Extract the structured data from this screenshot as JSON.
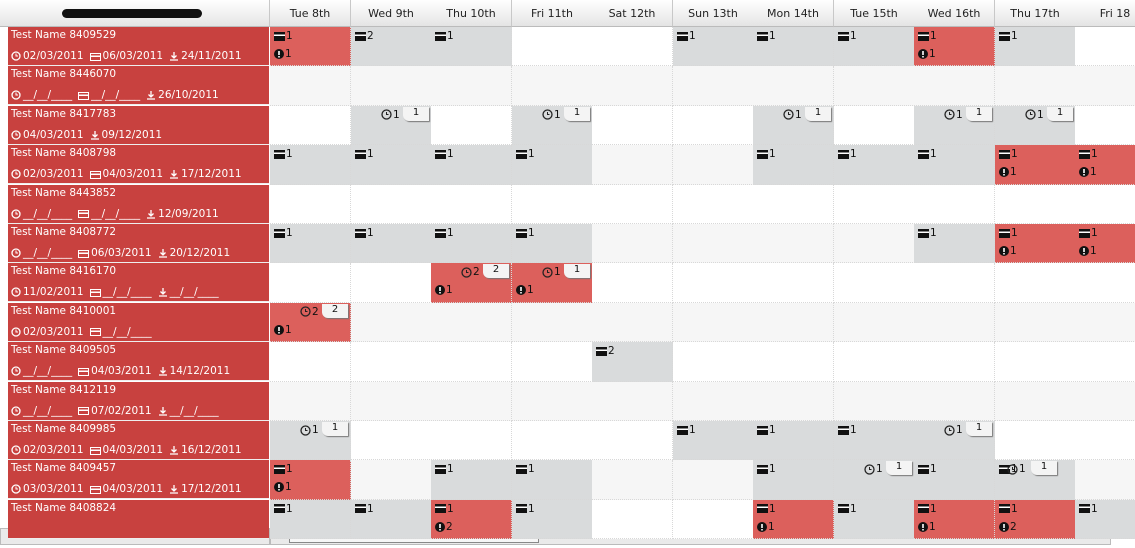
{
  "days": [
    "Tue 8th",
    "Wed 9th",
    "Thu 10th",
    "Fri 11th",
    "Sat 12th",
    "Sun 13th",
    "Mon 14th",
    "Tue 15th",
    "Wed 16th",
    "Thu 17th",
    "Fri 18"
  ],
  "rows": [
    {
      "name": "Test Name 8409529",
      "dates": [
        {
          "kind": "clock",
          "text": "02/03/2011"
        },
        {
          "kind": "card",
          "text": "06/03/2011"
        },
        {
          "kind": "download",
          "text": "24/11/2011"
        }
      ],
      "cells": [
        {
          "bg": "red",
          "card": 1,
          "alert": 1
        },
        {
          "bg": "gray",
          "card": 2
        },
        {
          "bg": "gray",
          "card": 1
        },
        {},
        {},
        {
          "bg": "gray",
          "card": 1
        },
        {
          "bg": "gray",
          "card": 1
        },
        {
          "bg": "gray",
          "card": 1
        },
        {
          "bg": "red",
          "card": 1,
          "alert": 1
        },
        {
          "bg": "gray",
          "card": 1
        },
        {}
      ]
    },
    {
      "name": "Test Name 8446070",
      "dates": [
        {
          "kind": "clock",
          "text": "__/__/____"
        },
        {
          "kind": "card",
          "text": "__/__/____"
        },
        {
          "kind": "download",
          "text": "26/10/2011"
        }
      ],
      "cells": [
        {},
        {},
        {},
        {},
        {},
        {},
        {},
        {},
        {},
        {},
        {}
      ]
    },
    {
      "name": "Test Name 8417783",
      "dates": [
        {
          "kind": "clock",
          "text": "04/03/2011"
        },
        {
          "kind": "download",
          "text": "09/12/2011"
        }
      ],
      "cells": [
        {},
        {
          "bg": "gray",
          "clock": 1,
          "badge": 1
        },
        {},
        {
          "bg": "gray",
          "clock": 1,
          "badge": 1
        },
        {},
        {},
        {
          "bg": "gray",
          "clock": 1,
          "badge": 1
        },
        {},
        {
          "bg": "gray",
          "clock": 1,
          "badge": 1
        },
        {
          "bg": "gray",
          "clock": 1,
          "badge": 1
        },
        {}
      ]
    },
    {
      "name": "Test Name 8408798",
      "dates": [
        {
          "kind": "clock",
          "text": "02/03/2011"
        },
        {
          "kind": "card",
          "text": "04/03/2011"
        },
        {
          "kind": "download",
          "text": "17/12/2011"
        }
      ],
      "cells": [
        {
          "bg": "gray",
          "card": 1
        },
        {
          "bg": "gray",
          "card": 1
        },
        {
          "bg": "gray",
          "card": 1
        },
        {
          "bg": "gray",
          "card": 1
        },
        {},
        {},
        {
          "bg": "gray",
          "card": 1
        },
        {
          "bg": "gray",
          "card": 1
        },
        {
          "bg": "gray",
          "card": 1
        },
        {
          "bg": "red",
          "card": 1,
          "alert": 1
        },
        {
          "bg": "red",
          "card": 1,
          "alert": 1
        }
      ]
    },
    {
      "name": "Test Name 8443852",
      "dates": [
        {
          "kind": "clock",
          "text": "__/__/____"
        },
        {
          "kind": "card",
          "text": "__/__/____"
        },
        {
          "kind": "download",
          "text": "12/09/2011"
        }
      ],
      "cells": [
        {},
        {},
        {},
        {},
        {},
        {},
        {},
        {},
        {},
        {},
        {}
      ]
    },
    {
      "name": "Test Name 8408772",
      "dates": [
        {
          "kind": "clock",
          "text": "__/__/____"
        },
        {
          "kind": "card",
          "text": "06/03/2011"
        },
        {
          "kind": "download",
          "text": "20/12/2011"
        }
      ],
      "cells": [
        {
          "bg": "gray",
          "card": 1
        },
        {
          "bg": "gray",
          "card": 1
        },
        {
          "bg": "gray",
          "card": 1
        },
        {
          "bg": "gray",
          "card": 1
        },
        {},
        {},
        {},
        {},
        {
          "bg": "gray",
          "card": 1
        },
        {
          "bg": "red",
          "card": 1,
          "alert": 1
        },
        {
          "bg": "red",
          "card": 1,
          "alert": 1
        }
      ]
    },
    {
      "name": "Test Name 8416170",
      "dates": [
        {
          "kind": "clock",
          "text": "11/02/2011"
        },
        {
          "kind": "card",
          "text": "__/__/____"
        },
        {
          "kind": "download",
          "text": "__/__/____"
        }
      ],
      "cells": [
        {},
        {},
        {
          "bg": "red",
          "clock": 2,
          "badge": 2,
          "alert": 1
        },
        {
          "bg": "red",
          "clock": 1,
          "badge": 1,
          "alert": 1
        },
        {},
        {},
        {},
        {},
        {},
        {},
        {}
      ]
    },
    {
      "name": "Test Name 8410001",
      "dates": [
        {
          "kind": "clock",
          "text": "02/03/2011"
        },
        {
          "kind": "card",
          "text": "__/__/____"
        }
      ],
      "cells": [
        {
          "bg": "red",
          "clock": 2,
          "badge": 2,
          "alert": 1
        },
        {},
        {},
        {},
        {},
        {},
        {},
        {},
        {},
        {},
        {}
      ]
    },
    {
      "name": "Test Name 8409505",
      "dates": [
        {
          "kind": "clock",
          "text": "__/__/____"
        },
        {
          "kind": "card",
          "text": "04/03/2011"
        },
        {
          "kind": "download",
          "text": "14/12/2011"
        }
      ],
      "cells": [
        {},
        {},
        {},
        {},
        {
          "bg": "gray",
          "card": 2
        },
        {},
        {},
        {},
        {},
        {},
        {}
      ]
    },
    {
      "name": "Test Name 8412119",
      "dates": [
        {
          "kind": "clock",
          "text": "__/__/____"
        },
        {
          "kind": "card",
          "text": "07/02/2011"
        },
        {
          "kind": "download",
          "text": "__/__/____"
        }
      ],
      "cells": [
        {},
        {},
        {},
        {},
        {},
        {},
        {},
        {},
        {},
        {},
        {}
      ]
    },
    {
      "name": "Test Name 8409985",
      "dates": [
        {
          "kind": "clock",
          "text": "02/03/2011"
        },
        {
          "kind": "card",
          "text": "04/03/2011"
        },
        {
          "kind": "download",
          "text": "16/12/2011"
        }
      ],
      "cells": [
        {
          "bg": "gray",
          "clock": 1,
          "badge": 1
        },
        {},
        {},
        {},
        {},
        {
          "bg": "gray",
          "card": 1
        },
        {
          "bg": "gray",
          "card": 1
        },
        {
          "bg": "gray",
          "card": 1
        },
        {
          "bg": "gray",
          "clock": 1,
          "badge": 1
        },
        {},
        {}
      ]
    },
    {
      "name": "Test Name 8409457",
      "dates": [
        {
          "kind": "clock",
          "text": "03/03/2011"
        },
        {
          "kind": "card",
          "text": "04/03/2011"
        },
        {
          "kind": "download",
          "text": "17/12/2011"
        }
      ],
      "cells": [
        {
          "bg": "red",
          "card": 1,
          "alert": 1
        },
        {},
        {
          "bg": "gray",
          "card": 1
        },
        {
          "bg": "gray",
          "card": 1
        },
        {},
        {},
        {
          "bg": "gray",
          "card": 1
        },
        {
          "bg": "gray",
          "clock": 1,
          "badge": 1
        },
        {
          "bg": "gray",
          "card": 1
        },
        {
          "bg": "gray",
          "clock": 1,
          "badge": 1,
          "card": 1
        },
        {}
      ]
    },
    {
      "name": "Test Name 8408824",
      "dates": [],
      "cells": [
        {
          "bg": "gray",
          "card": 1
        },
        {
          "bg": "gray",
          "card": 1
        },
        {
          "bg": "red",
          "card": 1,
          "alert": 2
        },
        {
          "bg": "gray",
          "card": 1
        },
        {},
        {},
        {
          "bg": "red",
          "card": 1,
          "alert": 1
        },
        {
          "bg": "gray",
          "card": 1
        },
        {
          "bg": "red",
          "card": 1,
          "alert": 1
        },
        {
          "bg": "red",
          "card": 1,
          "alert": 2
        },
        {
          "bg": "gray",
          "card": 1
        }
      ]
    }
  ]
}
